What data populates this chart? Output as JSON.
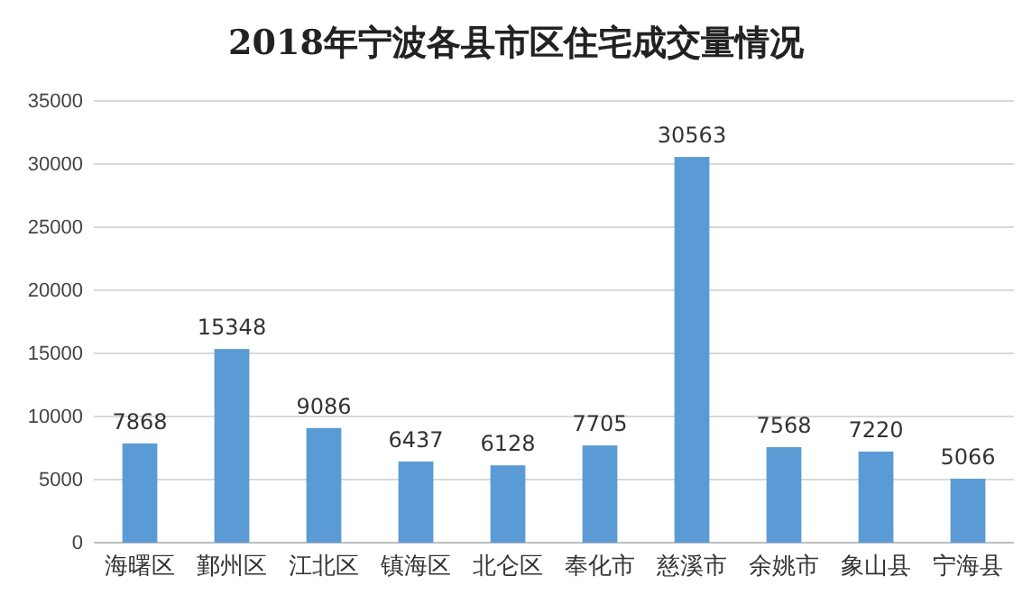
{
  "chart_data": {
    "type": "bar",
    "title": "2018年宁波各县市区住宅成交量情况",
    "categories": [
      "海曙区",
      "鄞州区",
      "江北区",
      "镇海区",
      "北仑区",
      "奉化市",
      "慈溪市",
      "余姚市",
      "象山县",
      "宁海县"
    ],
    "values": [
      7868,
      15348,
      9086,
      6437,
      6128,
      7705,
      30563,
      7568,
      7220,
      5066
    ],
    "color": "#5b9bd5",
    "ylim": [
      0,
      35000
    ],
    "yticks": [
      0,
      5000,
      10000,
      15000,
      20000,
      25000,
      30000,
      35000
    ],
    "grid": "y",
    "data_labels": true
  }
}
